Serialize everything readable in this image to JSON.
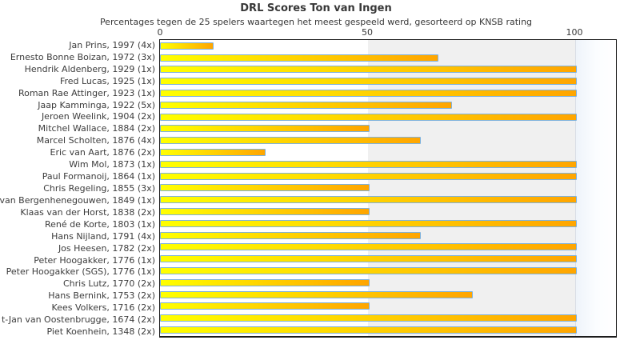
{
  "chart_data": {
    "type": "bar",
    "orientation": "horizontal",
    "title": "DRL Scores Ton van Ingen",
    "subtitle": "Percentages tegen de 25 spelers waartegen het meest gespeeld werd, gesorteerd op KNSB rating",
    "xlabel": "",
    "ylabel": "",
    "xlim": [
      0,
      100
    ],
    "x_ticks": [
      "0",
      "50",
      "100"
    ],
    "grid": "band-shading at 50-100",
    "legend": "none",
    "categories": [
      "Jan Prins, 1997 (4x)",
      "Ernesto Bonne Boizan, 1972 (3x)",
      "Hendrik Aldenberg, 1929 (1x)",
      "Fred Lucas, 1925 (1x)",
      "Roman Rae Attinger, 1923 (1x)",
      "Jaap Kamminga, 1922 (5x)",
      "Jeroen Weelink, 1904 (2x)",
      "Mitchel Wallace, 1884 (2x)",
      "Marcel Scholten, 1876 (4x)",
      "Eric van Aart, 1876 (2x)",
      "Wim Mol, 1873 (1x)",
      "Paul Formanoij, 1864 (1x)",
      "Chris Regeling, 1855 (3x)",
      "van Bergenhenegouwen, 1849 (1x)",
      "Klaas van der Horst, 1838 (2x)",
      "René de Korte, 1803 (1x)",
      "Hans Nijland, 1791 (4x)",
      "Jos Heesen, 1782 (2x)",
      "Peter Hoogakker, 1776 (1x)",
      "Peter Hoogakker (SGS), 1776 (1x)",
      "Chris Lutz, 1770 (2x)",
      "Hans Bernink, 1753 (2x)",
      "Kees Volkers, 1716 (2x)",
      "t-Jan van Oostenbrugge, 1674 (2x)",
      "Piet Koenhein, 1348 (2x)"
    ],
    "values": [
      12.5,
      66.7,
      100,
      100,
      100,
      70,
      100,
      50,
      62.5,
      25,
      100,
      100,
      50,
      100,
      50,
      100,
      62.5,
      100,
      100,
      100,
      50,
      75,
      50,
      100,
      100
    ],
    "colors": {
      "bar_gradient_start": "#ffff00",
      "bar_gradient_end": "#ffa500",
      "bar_border": "#7fb2dc",
      "plot_band_left_bg": "#ffffff",
      "plot_band_right_bg": "#f0f0f0",
      "text": "#3c3c3c",
      "plot_border": "#1c1c1c"
    }
  }
}
